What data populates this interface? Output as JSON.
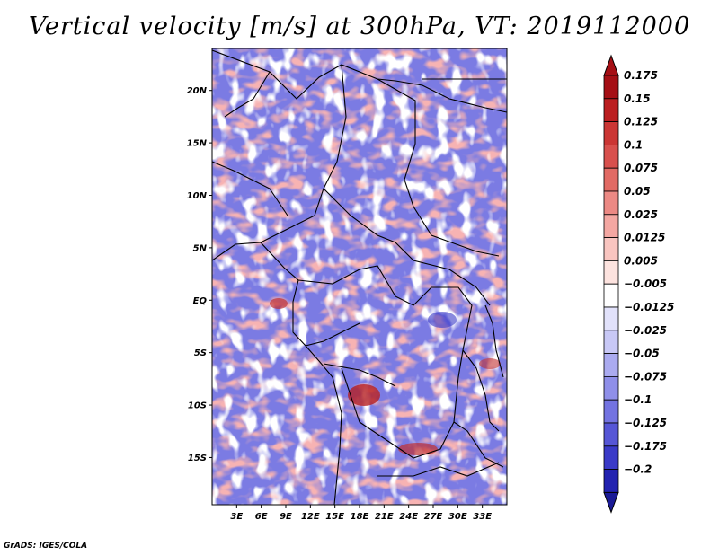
{
  "title": "Vertical velocity [m/s] at 300hPa, VT: 2019112000",
  "footer": "GrADS: IGES/COLA",
  "map": {
    "lon_range": [
      0,
      36
    ],
    "lat_range": [
      -19.5,
      24
    ],
    "y_ticks": [
      {
        "lat": 20,
        "label": "20N"
      },
      {
        "lat": 15,
        "label": "15N"
      },
      {
        "lat": 10,
        "label": "10N"
      },
      {
        "lat": 5,
        "label": "5N"
      },
      {
        "lat": 0,
        "label": "EQ"
      },
      {
        "lat": -5,
        "label": "5S"
      },
      {
        "lat": -10,
        "label": "10S"
      },
      {
        "lat": -15,
        "label": "15S"
      }
    ],
    "x_ticks": [
      {
        "lon": 3,
        "label": "3E"
      },
      {
        "lon": 6,
        "label": "6E"
      },
      {
        "lon": 9,
        "label": "9E"
      },
      {
        "lon": 12,
        "label": "12E"
      },
      {
        "lon": 15,
        "label": "15E"
      },
      {
        "lon": 18,
        "label": "18E"
      },
      {
        "lon": 21,
        "label": "21E"
      },
      {
        "lon": 24,
        "label": "24E"
      },
      {
        "lon": 27,
        "label": "27E"
      },
      {
        "lon": 30,
        "label": "30E"
      },
      {
        "lon": 33,
        "label": "33E"
      }
    ]
  },
  "colorbar": {
    "levels": [
      {
        "label": "0.175",
        "color": "#a50f15"
      },
      {
        "label": "0.15",
        "color": "#bb1e20"
      },
      {
        "label": "0.125",
        "color": "#cb3634"
      },
      {
        "label": "0.1",
        "color": "#d8504d"
      },
      {
        "label": "0.075",
        "color": "#e26a64"
      },
      {
        "label": "0.05",
        "color": "#ec8984"
      },
      {
        "label": "0.025",
        "color": "#f4a7a2"
      },
      {
        "label": "0.0125",
        "color": "#f9c5c0"
      },
      {
        "label": "0.005",
        "color": "#fde3df"
      },
      {
        "label": "−0.005",
        "color": "#ffffff"
      },
      {
        "label": "−0.0125",
        "color": "#e2e2fb"
      },
      {
        "label": "−0.025",
        "color": "#c8c8f6"
      },
      {
        "label": "−0.05",
        "color": "#ababf0"
      },
      {
        "label": "−0.075",
        "color": "#8f8fe9"
      },
      {
        "label": "−0.1",
        "color": "#7373e1"
      },
      {
        "label": "−0.125",
        "color": "#5656d6"
      },
      {
        "label": "−0.175",
        "color": "#3a3ac8"
      },
      {
        "label": "−0.2",
        "color": "#2222b0"
      }
    ],
    "bottom_color": "#1a1a96"
  },
  "colors": {
    "pos": "#e07a78",
    "neg": "#7b7be3"
  }
}
